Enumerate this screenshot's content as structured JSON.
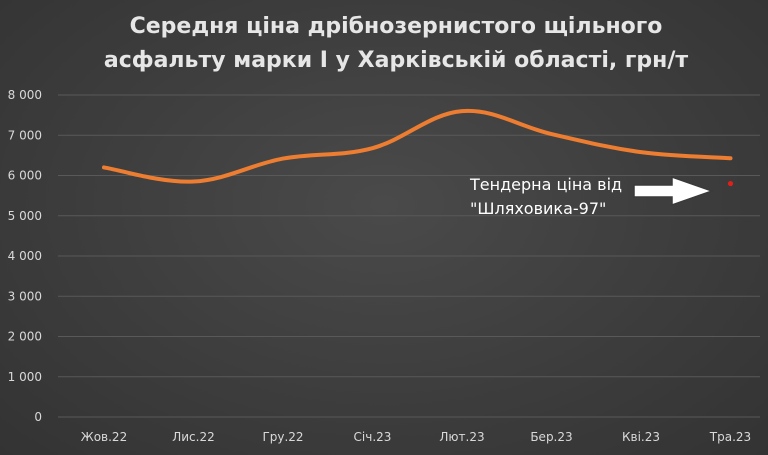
{
  "chart_data": {
    "type": "line",
    "title": "Середня ціна дрібнозернистого щільного асфальту марки І у Харківській області, грн/т",
    "title_lines": [
      "Середня ціна дрібнозернистого щільного",
      "асфальту марки І у Харківській області, грн/т"
    ],
    "categories": [
      "Жов.22",
      "Лис.22",
      "Гру.22",
      "Січ.23",
      "Лют.23",
      "Бер.23",
      "Кві.23",
      "Тра.23"
    ],
    "series": [
      {
        "values": [
          6200,
          5850,
          6420,
          6680,
          7600,
          7030,
          6580,
          6430
        ],
        "color": "#ed7d31"
      }
    ],
    "tender_point": {
      "category": "Тра.23",
      "value": 5700,
      "color": "#e0201b"
    },
    "annotation": {
      "lines": [
        "Тендерна ціна від",
        "\"Шляховика-97\""
      ]
    },
    "ylim": [
      0,
      8000
    ],
    "yticks": [
      "8 000",
      "7 000",
      "6 000",
      "5 000",
      "4 000",
      "3 000",
      "2 000",
      "1 000",
      "0"
    ],
    "ytick_values": [
      8000,
      7000,
      6000,
      5000,
      4000,
      3000,
      2000,
      1000,
      0
    ],
    "xlabel": "",
    "ylabel": "",
    "grid": true,
    "legend": "none"
  }
}
